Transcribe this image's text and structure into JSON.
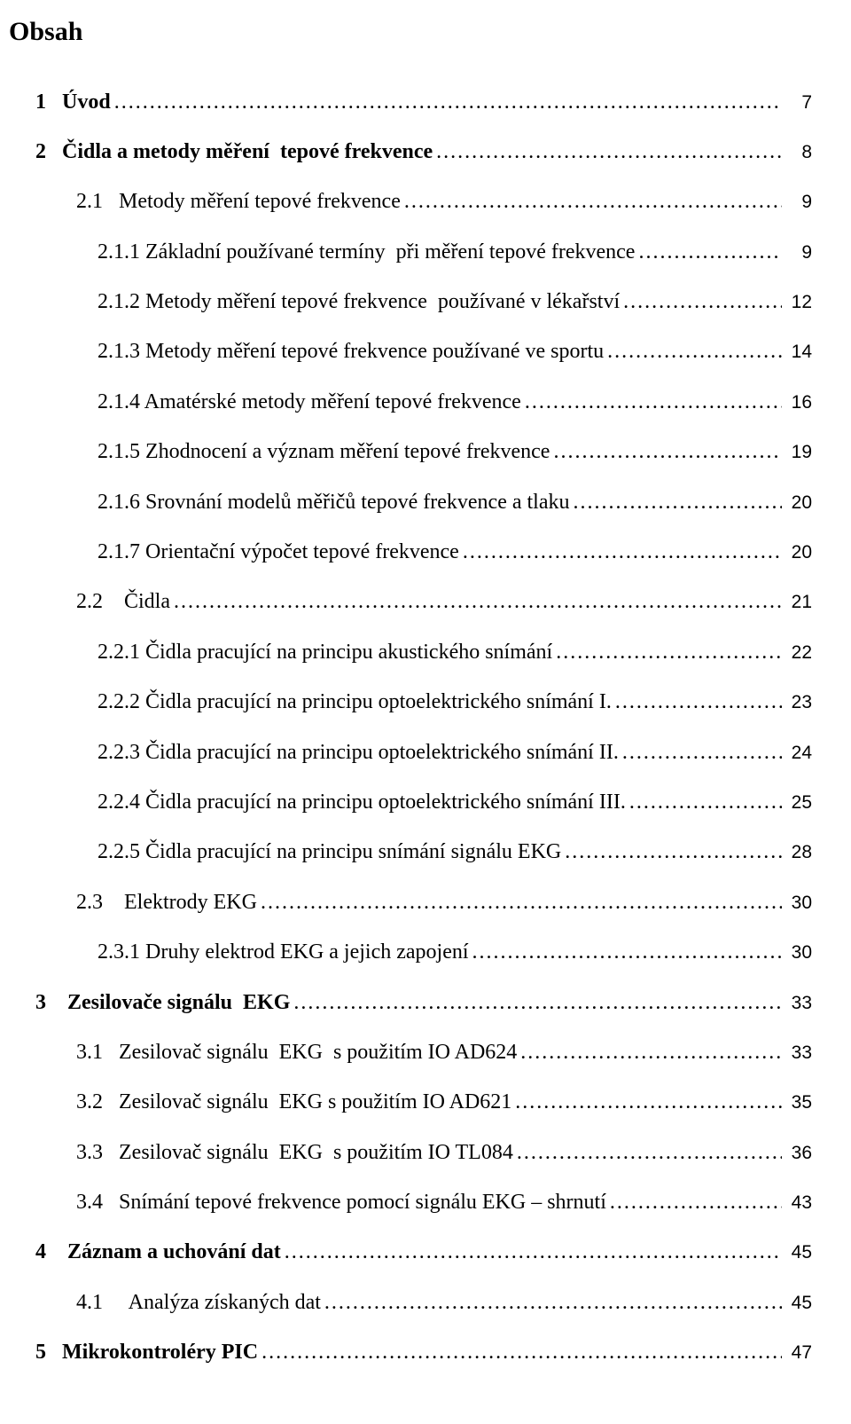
{
  "title": "Obsah",
  "entries": [
    {
      "level": 0,
      "bold": true,
      "label": "1   Úvod",
      "page": "7"
    },
    {
      "level": 0,
      "bold": true,
      "label": "2   Čidla a metody měření  tepové frekvence",
      "page": "8"
    },
    {
      "level": 1,
      "bold": false,
      "label": "2.1   Metody měření tepové frekvence",
      "page": "9"
    },
    {
      "level": 2,
      "bold": false,
      "label": "2.1.1 Základní používané termíny  při měření tepové frekvence",
      "page": "9"
    },
    {
      "level": 2,
      "bold": false,
      "label": "2.1.2 Metody měření tepové frekvence  používané v lékařství",
      "page": "12"
    },
    {
      "level": 2,
      "bold": false,
      "label": "2.1.3 Metody měření tepové frekvence používané ve sportu",
      "page": "14"
    },
    {
      "level": 2,
      "bold": false,
      "label": "2.1.4 Amatérské metody měření tepové frekvence",
      "page": "16"
    },
    {
      "level": 2,
      "bold": false,
      "label": "2.1.5 Zhodnocení a význam měření tepové frekvence",
      "page": "19"
    },
    {
      "level": 2,
      "bold": false,
      "label": "2.1.6 Srovnání modelů měřičů tepové frekvence a tlaku",
      "page": "20"
    },
    {
      "level": 2,
      "bold": false,
      "label": "2.1.7 Orientační výpočet tepové frekvence",
      "page": "20"
    },
    {
      "level": 1,
      "bold": false,
      "label": "2.2    Čidla",
      "page": "21"
    },
    {
      "level": 2,
      "bold": false,
      "label": "2.2.1 Čidla pracující na principu akustického snímání",
      "page": "22"
    },
    {
      "level": 2,
      "bold": false,
      "label": "2.2.2 Čidla pracující na principu optoelektrického snímání I.",
      "page": "23"
    },
    {
      "level": 2,
      "bold": false,
      "label": "2.2.3 Čidla pracující na principu optoelektrického snímání II.",
      "page": "24"
    },
    {
      "level": 2,
      "bold": false,
      "label": "2.2.4 Čidla pracující na principu optoelektrického snímání III.",
      "page": "25"
    },
    {
      "level": 2,
      "bold": false,
      "label": "2.2.5 Čidla pracující na principu snímání signálu EKG",
      "page": "28"
    },
    {
      "level": 1,
      "bold": false,
      "label": "2.3    Elektrody EKG",
      "page": "30"
    },
    {
      "level": 2,
      "bold": false,
      "label": "2.3.1 Druhy elektrod EKG a jejich zapojení",
      "page": "30"
    },
    {
      "level": 0,
      "bold": true,
      "label": "3    Zesilovače signálu  EKG",
      "page": "33"
    },
    {
      "level": 1,
      "bold": false,
      "label": "3.1   Zesilovač signálu  EKG  s použitím IO AD624",
      "page": "33"
    },
    {
      "level": 1,
      "bold": false,
      "label": "3.2   Zesilovač signálu  EKG s použitím IO AD621",
      "page": "35"
    },
    {
      "level": 1,
      "bold": false,
      "label": "3.3   Zesilovač signálu  EKG  s použitím IO TL084",
      "page": "36"
    },
    {
      "level": 1,
      "bold": false,
      "label": "3.4   Snímání tepové frekvence pomocí signálu EKG – shrnutí",
      "page": "43"
    },
    {
      "level": 0,
      "bold": true,
      "label": "4    Záznam a uchování dat",
      "page": "45"
    },
    {
      "level": 1,
      "bold": false,
      "label": "4.1     Analýza získaných dat",
      "page": "45"
    },
    {
      "level": 0,
      "bold": true,
      "label": "5   Mikrokontroléry PIC",
      "page": "47"
    }
  ],
  "leader_char": "."
}
